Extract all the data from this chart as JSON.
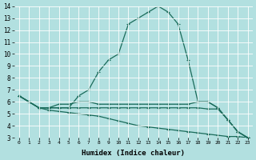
{
  "xlabel": "Humidex (Indice chaleur)",
  "background_color": "#b2e0e0",
  "grid_color": "#ffffff",
  "line_color": "#1a6b5a",
  "xlim": [
    -0.5,
    23.5
  ],
  "ylim": [
    3,
    14
  ],
  "yticks": [
    3,
    4,
    5,
    6,
    7,
    8,
    9,
    10,
    11,
    12,
    13,
    14
  ],
  "xticks": [
    0,
    1,
    2,
    3,
    4,
    5,
    6,
    7,
    8,
    9,
    10,
    11,
    12,
    13,
    14,
    15,
    16,
    17,
    18,
    19,
    20,
    21,
    22,
    23
  ],
  "series": [
    {
      "x": [
        0,
        1,
        2,
        3,
        4,
        5,
        6,
        7,
        8,
        9,
        10,
        11,
        12,
        13,
        14,
        15,
        16,
        17,
        18,
        19,
        20,
        21,
        22,
        23
      ],
      "y": [
        6.5,
        6.0,
        5.5,
        5.5,
        5.5,
        5.5,
        6.5,
        7.0,
        8.5,
        9.5,
        10.0,
        12.5,
        13.0,
        13.5,
        14.0,
        13.5,
        12.5,
        9.5,
        6.0,
        6.0,
        5.5,
        4.5,
        3.5,
        3.0
      ]
    },
    {
      "x": [
        0,
        1,
        2,
        3,
        4,
        5,
        6,
        7,
        8,
        9,
        10,
        11,
        12,
        13,
        14,
        15,
        16,
        17,
        18,
        19,
        20,
        21,
        22,
        23
      ],
      "y": [
        6.5,
        6.0,
        5.5,
        5.5,
        5.8,
        5.8,
        6.0,
        6.0,
        5.8,
        5.8,
        5.8,
        5.8,
        5.8,
        5.8,
        5.8,
        5.8,
        5.8,
        5.8,
        6.0,
        6.0,
        5.5,
        4.5,
        3.5,
        3.0
      ]
    },
    {
      "x": [
        0,
        1,
        2,
        3,
        4,
        5,
        6,
        7,
        8,
        9,
        10,
        11,
        12,
        13,
        14,
        15,
        16,
        17,
        18,
        19,
        20,
        21,
        22,
        23
      ],
      "y": [
        6.5,
        6.0,
        5.5,
        5.5,
        5.5,
        5.5,
        5.5,
        5.5,
        5.5,
        5.5,
        5.5,
        5.5,
        5.5,
        5.5,
        5.5,
        5.5,
        5.5,
        5.5,
        5.5,
        5.4,
        5.4,
        4.5,
        3.5,
        3.0
      ]
    },
    {
      "x": [
        0,
        1,
        2,
        3,
        4,
        5,
        6,
        7,
        8,
        9,
        10,
        11,
        12,
        13,
        14,
        15,
        16,
        17,
        18,
        19,
        20,
        21,
        22,
        23
      ],
      "y": [
        6.5,
        6.0,
        5.5,
        5.3,
        5.2,
        5.1,
        5.0,
        4.9,
        4.8,
        4.6,
        4.4,
        4.2,
        4.0,
        3.9,
        3.8,
        3.7,
        3.6,
        3.5,
        3.4,
        3.3,
        3.2,
        3.1,
        3.1,
        3.0
      ]
    }
  ]
}
